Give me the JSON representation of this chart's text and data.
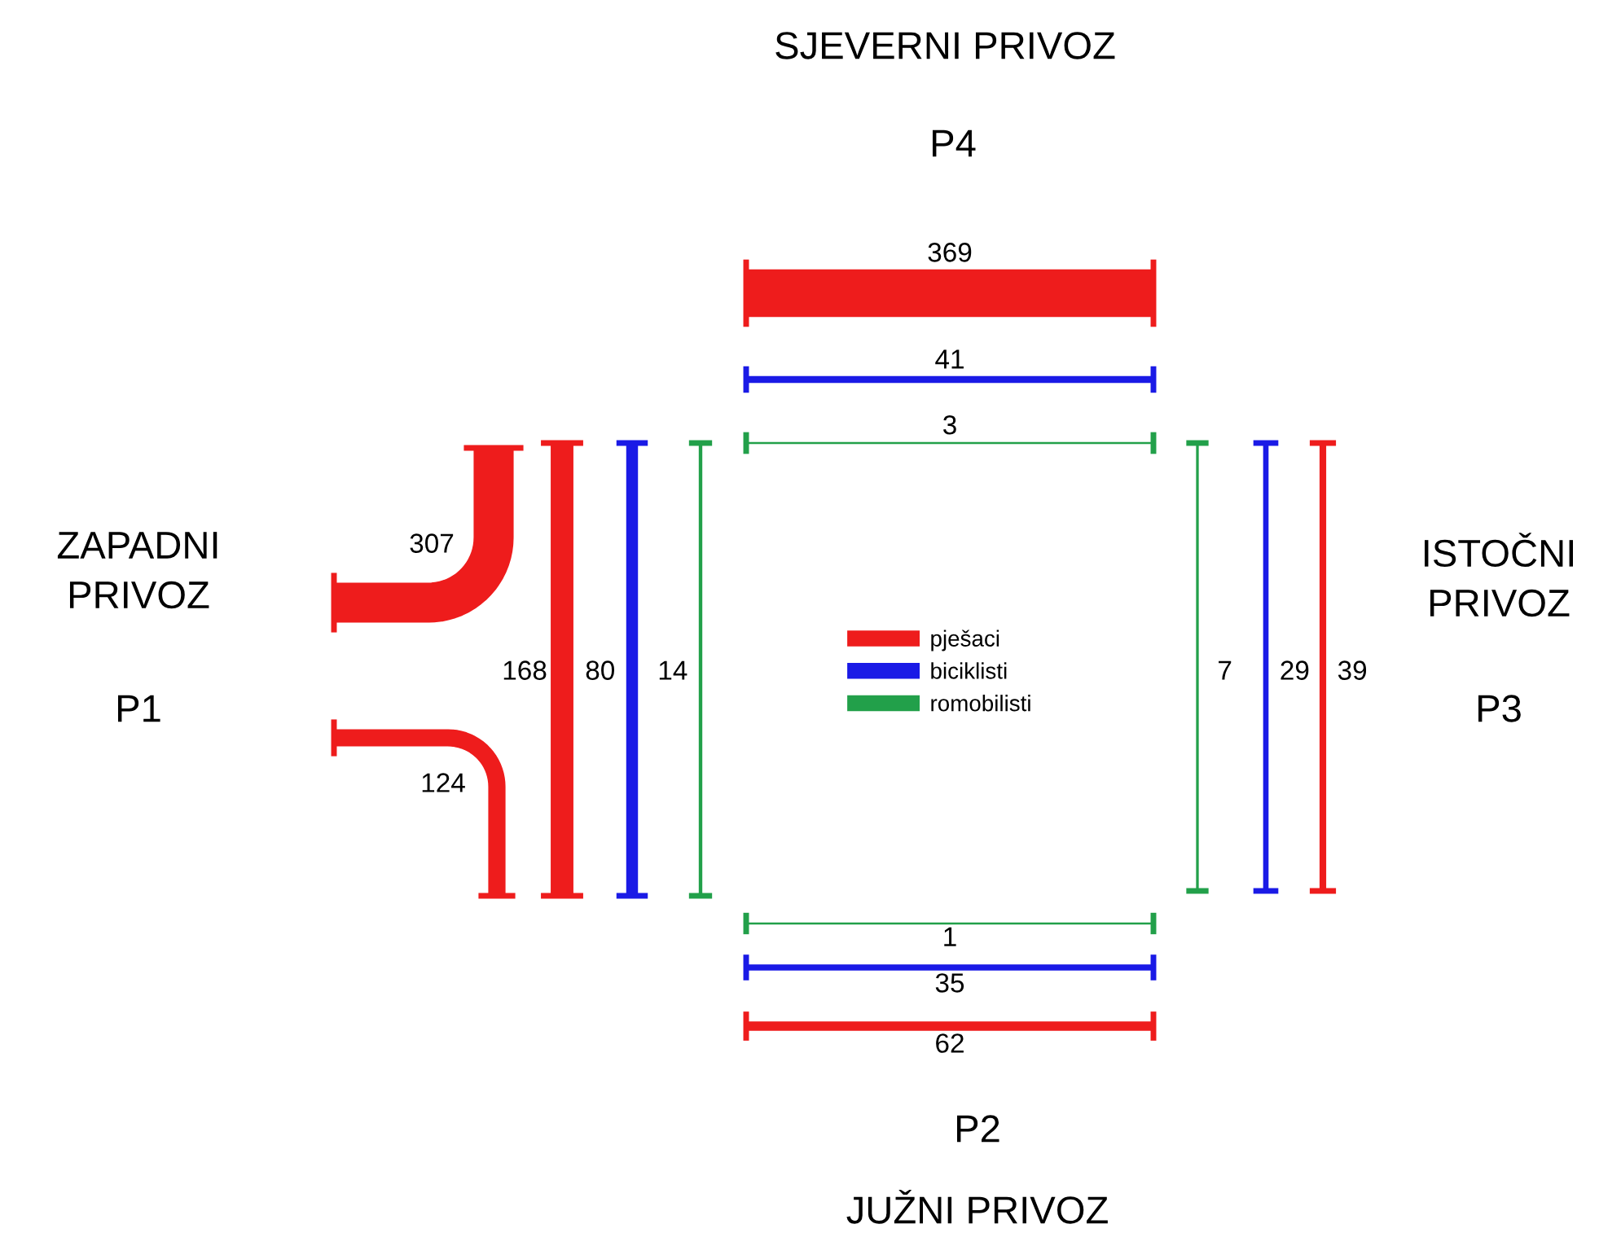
{
  "chart_data": {
    "type": "other",
    "categories": [
      "ZAPADNI PRIVOZ",
      "JUŽNI PRIVOZ",
      "ISTOČNI PRIVOZ",
      "SJEVERNI PRIVOZ"
    ],
    "annotations": [
      "P1",
      "P2",
      "P3",
      "P4"
    ],
    "series": [
      {
        "name": "pješaci",
        "color": "#ee1c1c",
        "values": [
          168,
          62,
          39,
          369
        ]
      },
      {
        "name": "biciklisti",
        "color": "#1a1ae6",
        "values": [
          80,
          35,
          29,
          41
        ]
      },
      {
        "name": "romobilisti",
        "color": "#22a04a",
        "values": [
          14,
          1,
          7,
          3
        ]
      },
      {
        "color": "#ee1c1c",
        "values": [
          307,
          null,
          null,
          null
        ]
      },
      {
        "color": "#ee1c1c",
        "values": [
          124,
          null,
          null,
          null
        ]
      }
    ],
    "data_labels": true,
    "legend": "center"
  }
}
